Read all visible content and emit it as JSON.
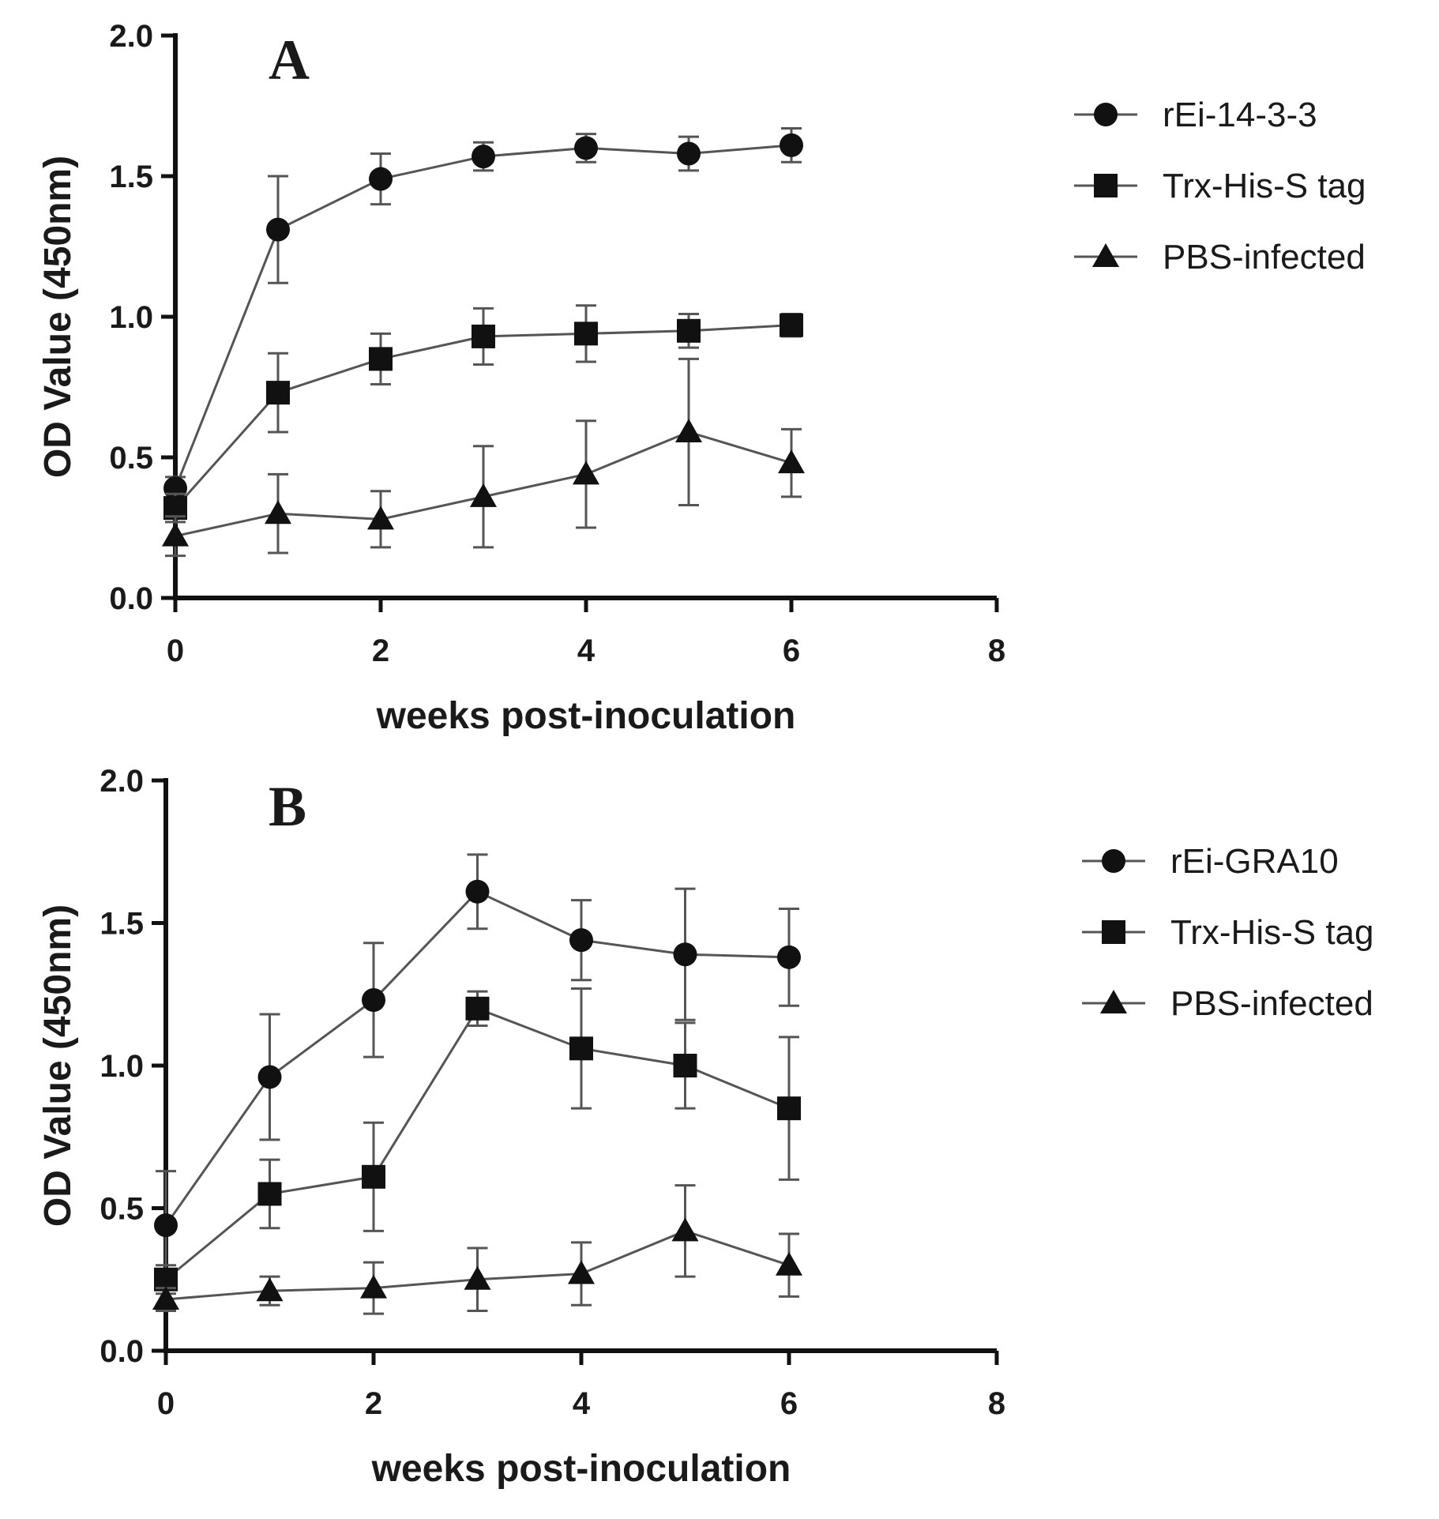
{
  "chart_data": [
    {
      "type": "line",
      "panel_label": "A",
      "xlabel": "weeks post-inoculation",
      "ylabel": "OD Value (450nm)",
      "xlim": [
        0,
        8
      ],
      "ylim": [
        0.0,
        2.0
      ],
      "x_ticks": [
        "0",
        "2",
        "4",
        "6",
        "8"
      ],
      "y_ticks": [
        "0.0",
        "0.5",
        "1.0",
        "1.5",
        "2.0"
      ],
      "x": [
        0,
        1,
        2,
        3,
        4,
        5,
        6
      ],
      "series": [
        {
          "name": "rEi-14-3-3",
          "marker": "circle",
          "values": [
            0.39,
            1.31,
            1.49,
            1.57,
            1.6,
            1.58,
            1.61
          ],
          "errors": [
            0.04,
            0.19,
            0.09,
            0.05,
            0.05,
            0.06,
            0.06
          ]
        },
        {
          "name": "Trx-His-S tag",
          "marker": "square",
          "values": [
            0.32,
            0.73,
            0.85,
            0.93,
            0.94,
            0.95,
            0.97
          ],
          "errors": [
            0.05,
            0.14,
            0.09,
            0.1,
            0.1,
            0.06,
            0.04
          ]
        },
        {
          "name": "PBS-infected",
          "marker": "triangle",
          "values": [
            0.22,
            0.3,
            0.28,
            0.36,
            0.44,
            0.59,
            0.48
          ],
          "errors": [
            0.07,
            0.14,
            0.1,
            0.18,
            0.19,
            0.26,
            0.12
          ]
        }
      ]
    },
    {
      "type": "line",
      "panel_label": "B",
      "xlabel": "weeks post-inoculation",
      "ylabel": "OD Value (450nm)",
      "xlim": [
        0,
        8
      ],
      "ylim": [
        0.0,
        2.0
      ],
      "x_ticks": [
        "0",
        "2",
        "4",
        "6",
        "8"
      ],
      "y_ticks": [
        "0.0",
        "0.5",
        "1.0",
        "1.5",
        "2.0"
      ],
      "x": [
        0,
        1,
        2,
        3,
        4,
        5,
        6
      ],
      "series": [
        {
          "name": "rEi-GRA10",
          "marker": "circle",
          "values": [
            0.44,
            0.96,
            1.23,
            1.61,
            1.44,
            1.39,
            1.38
          ],
          "errors": [
            0.19,
            0.22,
            0.2,
            0.13,
            0.14,
            0.23,
            0.17
          ]
        },
        {
          "name": "Trx-His-S tag",
          "marker": "square",
          "values": [
            0.25,
            0.55,
            0.61,
            1.2,
            1.06,
            1.0,
            0.85
          ],
          "errors": [
            0.05,
            0.12,
            0.19,
            0.06,
            0.21,
            0.15,
            0.25
          ]
        },
        {
          "name": "PBS-infected",
          "marker": "triangle",
          "values": [
            0.18,
            0.21,
            0.22,
            0.25,
            0.27,
            0.42,
            0.3
          ],
          "errors": [
            0.04,
            0.05,
            0.09,
            0.11,
            0.11,
            0.16,
            0.11
          ]
        }
      ]
    }
  ]
}
